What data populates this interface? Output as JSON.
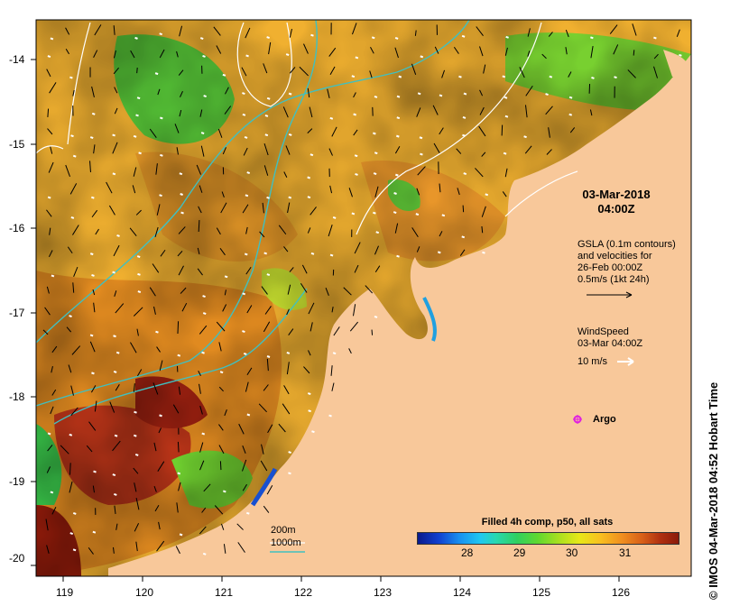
{
  "axes": {
    "x_ticks": [
      "119",
      "120",
      "121",
      "122",
      "123",
      "124",
      "125",
      "126"
    ],
    "y_ticks": [
      "-14",
      "-15",
      "-16",
      "-17",
      "-18",
      "-19",
      "-20"
    ]
  },
  "annotations": {
    "datetime_line1": "03-Mar-2018",
    "datetime_line2": "04:00Z",
    "gsla_line1": "GSLA (0.1m contours)",
    "gsla_line2": "and velocities for",
    "gsla_line3": "26-Feb 00:00Z",
    "gsla_line4": "0.5m/s (1kt 24h)",
    "wind_line1": "WindSpeed",
    "wind_line2": "03-Mar 04:00Z",
    "wind_scale": "10 m/s",
    "argo_label": "Argo",
    "depth_200": "200m",
    "depth_1000": "1000m"
  },
  "colorbar": {
    "title": "Filled 4h comp, p50, all sats",
    "labels": [
      "28",
      "29",
      "30",
      "31"
    ]
  },
  "credit": "IMOS 04-Mar-2018 04:52 Hobart Time",
  "credit_symbol": "©",
  "colors": {
    "land": "#f8c89a",
    "warm": "#e89020",
    "hot": "#a82010",
    "cool": "#30c030",
    "contour": "#ffffff",
    "isobath": "#40c0c0",
    "argo": "#e020e0"
  }
}
